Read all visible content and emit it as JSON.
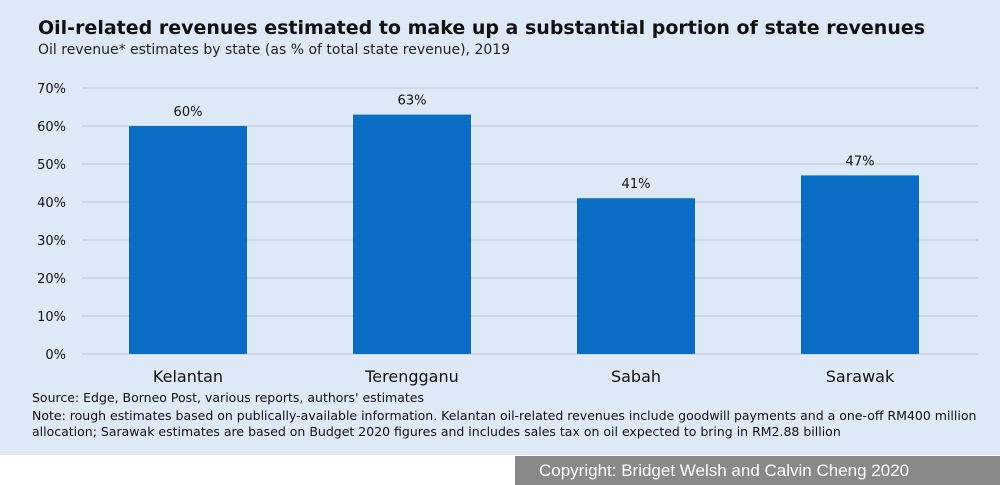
{
  "header": {
    "title": "Oil-related revenues estimated to make up a substantial portion of state revenues",
    "subtitle": "Oil revenue* estimates by state (as % of total state revenue), 2019"
  },
  "chart_data": {
    "type": "bar",
    "categories": [
      "Kelantan",
      "Terengganu",
      "Sabah",
      "Sarawak"
    ],
    "values": [
      60,
      63,
      41,
      47
    ],
    "value_labels": [
      "60%",
      "63%",
      "41%",
      "47%"
    ],
    "yticks": [
      0,
      10,
      20,
      30,
      40,
      50,
      60,
      70
    ],
    "ytick_labels": [
      "0%",
      "10%",
      "20%",
      "30%",
      "40%",
      "50%",
      "60%",
      "70%"
    ],
    "ylim": [
      0,
      70
    ],
    "grid": true,
    "bar_color": "#0a6ec4",
    "grid_color": "#b8c6d6",
    "background_color": "#dde9f7"
  },
  "footer": {
    "source": "Source: Edge, Borneo Post, various reports, authors' estimates",
    "note": "Note: rough estimates based on publically-available information. Kelantan oil-related revenues include goodwill payments and a one-off RM400 million allocation; Sarawak estimates are based on Budget 2020 figures and includes sales tax on oil expected to bring in RM2.88 billion",
    "copyright": "Copyright: Bridget Welsh and Calvin Cheng 2020"
  }
}
